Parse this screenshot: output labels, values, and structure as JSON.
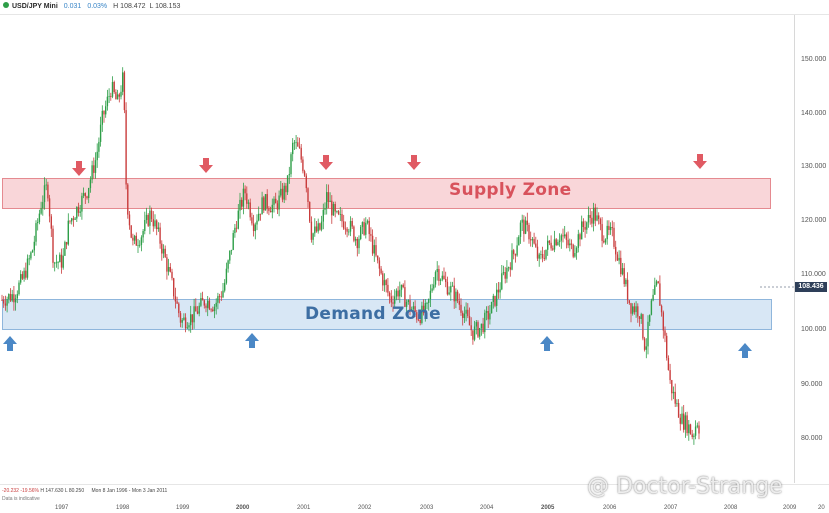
{
  "header": {
    "title": "USD/JPY Mini",
    "change": "0.031",
    "change_pct": "0.03%",
    "high": "H 108.472",
    "low": "L 108.153"
  },
  "zones": {
    "supply_label": "Supply Zone",
    "demand_label": "Demand Zone"
  },
  "last_price": "108.436",
  "footer": {
    "changes": "-20.232",
    "changes_pct": "-19.56%",
    "high": "H 147.630",
    "low": "L 80.250",
    "range": "Mon 8 Jan 1996 - Mon 3 Jan 2011",
    "note": "Data is indicative"
  },
  "watermark": "@ Doctor-Strange",
  "colors": {
    "up": "#2e9e48",
    "down": "#c93c3c",
    "supply": "#e86d75",
    "demand": "#9ec4e6",
    "arrow_down": "#e05a63",
    "arrow_up": "#4b88c6"
  },
  "chart_data": {
    "type": "line",
    "series": [
      {
        "values": [
          [
            1996.0,
            106
          ],
          [
            1996.2,
            107
          ],
          [
            1996.35,
            110
          ],
          [
            1996.5,
            115
          ],
          [
            1996.65,
            124
          ],
          [
            1996.75,
            127
          ],
          [
            1996.85,
            113
          ],
          [
            1997.0,
            113
          ],
          [
            1997.1,
            120
          ],
          [
            1997.25,
            123
          ],
          [
            1997.4,
            126
          ],
          [
            1997.55,
            132
          ],
          [
            1997.65,
            139
          ],
          [
            1997.8,
            145
          ],
          [
            1997.9,
            142
          ],
          [
            1998.0,
            147
          ],
          [
            1998.05,
            125
          ],
          [
            1998.15,
            116
          ],
          [
            1998.3,
            118
          ],
          [
            1998.45,
            122
          ],
          [
            1998.6,
            117
          ],
          [
            1998.75,
            111
          ],
          [
            1998.95,
            102
          ],
          [
            1999.15,
            103
          ],
          [
            1999.35,
            106
          ],
          [
            1999.5,
            105
          ],
          [
            1999.65,
            108
          ],
          [
            1999.75,
            114
          ],
          [
            1999.85,
            120
          ],
          [
            2000.0,
            126
          ],
          [
            2000.15,
            120
          ],
          [
            2000.3,
            124
          ],
          [
            2000.5,
            123
          ],
          [
            2000.7,
            127
          ],
          [
            2000.8,
            135
          ],
          [
            2000.9,
            133
          ],
          [
            2001.0,
            129
          ],
          [
            2001.1,
            118
          ],
          [
            2001.25,
            119
          ],
          [
            2001.35,
            125
          ],
          [
            2001.5,
            121
          ],
          [
            2001.7,
            120
          ],
          [
            2001.85,
            117
          ],
          [
            2002.0,
            120
          ],
          [
            2002.2,
            112
          ],
          [
            2002.4,
            106
          ],
          [
            2002.55,
            108
          ],
          [
            2002.7,
            105
          ],
          [
            2002.85,
            103
          ],
          [
            2003.0,
            104
          ],
          [
            2003.15,
            112
          ],
          [
            2003.3,
            109
          ],
          [
            2003.45,
            107
          ],
          [
            2003.6,
            104
          ],
          [
            2003.75,
            100
          ],
          [
            2003.9,
            101
          ],
          [
            2004.05,
            104
          ],
          [
            2004.25,
            110
          ],
          [
            2004.45,
            115
          ],
          [
            2004.55,
            120
          ],
          [
            2004.7,
            118
          ],
          [
            2004.85,
            113
          ],
          [
            2005.0,
            116
          ],
          [
            2005.2,
            118
          ],
          [
            2005.4,
            115
          ],
          [
            2005.55,
            119
          ],
          [
            2005.75,
            122
          ],
          [
            2005.9,
            118
          ],
          [
            2006.05,
            118
          ],
          [
            2006.2,
            112
          ],
          [
            2006.35,
            105
          ],
          [
            2006.5,
            104
          ],
          [
            2006.6,
            97
          ],
          [
            2006.7,
            105
          ],
          [
            2006.8,
            109
          ],
          [
            2006.92,
            99
          ],
          [
            2007.0,
            91
          ],
          [
            2007.1,
            87
          ],
          [
            2007.2,
            84
          ],
          [
            2007.3,
            83
          ],
          [
            2007.38,
            81
          ],
          [
            2007.45,
            84
          ],
          [
            2007.5,
            82
          ]
        ]
      }
    ],
    "y_ticks": [
      "150.000",
      "140.000",
      "130.000",
      "120.000",
      "110.000",
      "100.000",
      "90.000",
      "80.000"
    ],
    "x_ticks": [
      "1997",
      "1998",
      "1999",
      "2000",
      "2001",
      "2002",
      "2003",
      "2004",
      "2005",
      "2006",
      "2007",
      "2008",
      "2009",
      "20"
    ],
    "ylim": [
      80,
      150
    ]
  }
}
